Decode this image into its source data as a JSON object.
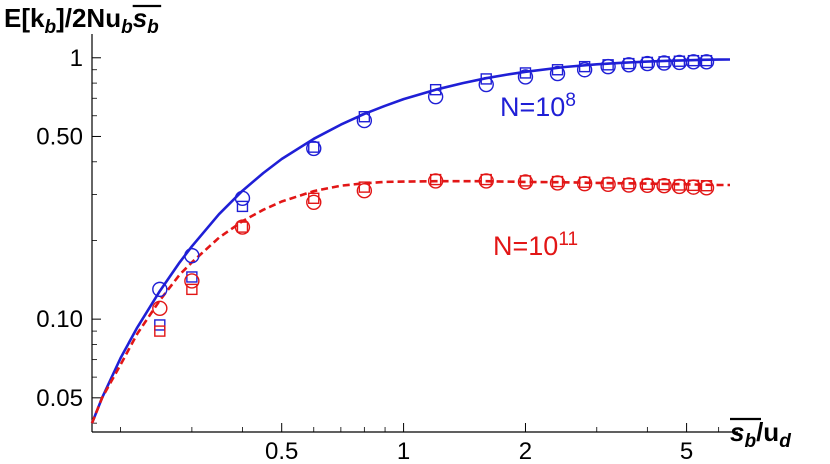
{
  "chart_data": {
    "type": "scatter",
    "title": "",
    "ylabel": {
      "main": "E[k",
      "sub1": "b",
      "mid": "]/2Nu",
      "sub2": "b",
      "over": "s",
      "sub3": "b"
    },
    "xlabel": {
      "over": "s",
      "sub1": "b",
      "mid": "/u",
      "sub2": "d"
    },
    "x_scale": "log",
    "y_scale": "log",
    "xlim": [
      0.17,
      6.4
    ],
    "ylim": [
      0.037,
      1.3
    ],
    "x_ticks": [
      {
        "value": 0.5,
        "label": "0.5"
      },
      {
        "value": 1,
        "label": "1"
      },
      {
        "value": 2,
        "label": "2"
      },
      {
        "value": 5,
        "label": "5"
      }
    ],
    "x_minor_ticks": [
      0.2,
      0.3,
      0.4,
      0.6,
      0.7,
      0.8,
      0.9,
      3,
      4,
      6
    ],
    "y_ticks": [
      {
        "value": 0.05,
        "label": "0.05"
      },
      {
        "value": 0.1,
        "label": "0.10"
      },
      {
        "value": 0.5,
        "label": "0.50"
      },
      {
        "value": 1,
        "label": "1"
      }
    ],
    "y_minor_ticks": [
      0.04,
      0.06,
      0.07,
      0.08,
      0.09,
      0.2,
      0.3,
      0.4,
      0.6,
      0.7,
      0.8,
      0.9
    ],
    "grid": false,
    "series": [
      {
        "annotation": {
          "base": "N=10",
          "exp": "8"
        },
        "color": "#1f1fd6",
        "line_style": "solid",
        "curve": {
          "x": [
            0.17,
            0.18,
            0.2,
            0.22,
            0.25,
            0.28,
            0.3,
            0.35,
            0.4,
            0.45,
            0.5,
            0.6,
            0.7,
            0.8,
            0.9,
            1.0,
            1.2,
            1.4,
            1.6,
            1.8,
            2.0,
            2.5,
            3.0,
            3.5,
            4.0,
            4.5,
            5.0,
            5.5,
            6.0,
            6.4
          ],
          "y": [
            0.04,
            0.05,
            0.071,
            0.093,
            0.128,
            0.165,
            0.19,
            0.252,
            0.31,
            0.362,
            0.41,
            0.49,
            0.555,
            0.61,
            0.655,
            0.695,
            0.755,
            0.8,
            0.835,
            0.862,
            0.884,
            0.922,
            0.944,
            0.958,
            0.967,
            0.974,
            0.978,
            0.982,
            0.984,
            0.985
          ]
        },
        "circles": {
          "x": [
            0.25,
            0.3,
            0.4,
            0.6,
            0.8,
            1.2,
            1.6,
            2.0,
            2.4,
            2.8,
            3.2,
            3.6,
            4.0,
            4.4,
            4.8,
            5.2,
            5.6
          ],
          "y": [
            0.13,
            0.175,
            0.29,
            0.45,
            0.575,
            0.71,
            0.79,
            0.845,
            0.87,
            0.9,
            0.925,
            0.94,
            0.95,
            0.955,
            0.96,
            0.965,
            0.965
          ]
        },
        "squares": {
          "x": [
            0.25,
            0.3,
            0.4,
            0.6,
            0.8,
            1.2,
            1.6,
            2.0,
            2.4,
            2.8,
            3.2,
            3.6,
            4.0,
            4.4,
            4.8,
            5.2,
            5.6
          ],
          "y": [
            0.095,
            0.145,
            0.27,
            0.455,
            0.595,
            0.755,
            0.83,
            0.875,
            0.9,
            0.925,
            0.94,
            0.95,
            0.96,
            0.965,
            0.97,
            0.975,
            0.975
          ]
        }
      },
      {
        "annotation": {
          "base": "N=10",
          "exp": "11"
        },
        "color": "#e21616",
        "line_style": "dashed",
        "curve": {
          "x": [
            0.17,
            0.18,
            0.2,
            0.22,
            0.25,
            0.28,
            0.3,
            0.35,
            0.4,
            0.45,
            0.5,
            0.6,
            0.7,
            0.8,
            0.9,
            1.0,
            1.2,
            1.4,
            1.6,
            1.8,
            2.0,
            2.5,
            3.0,
            3.5,
            4.0,
            4.5,
            5.0,
            5.5,
            6.0,
            6.4
          ],
          "y": [
            0.04,
            0.05,
            0.067,
            0.088,
            0.118,
            0.148,
            0.165,
            0.205,
            0.237,
            0.262,
            0.282,
            0.309,
            0.324,
            0.331,
            0.335,
            0.336,
            0.337,
            0.337,
            0.337,
            0.336,
            0.335,
            0.334,
            0.332,
            0.331,
            0.33,
            0.329,
            0.328,
            0.327,
            0.326,
            0.326
          ]
        },
        "circles": {
          "x": [
            0.25,
            0.3,
            0.4,
            0.6,
            0.8,
            1.2,
            1.6,
            2.0,
            2.4,
            2.8,
            3.2,
            3.6,
            4.0,
            4.4,
            4.8,
            5.2,
            5.6
          ],
          "y": [
            0.11,
            0.14,
            0.225,
            0.28,
            0.31,
            0.338,
            0.338,
            0.335,
            0.332,
            0.33,
            0.328,
            0.326,
            0.325,
            0.324,
            0.322,
            0.32,
            0.318
          ]
        },
        "squares": {
          "x": [
            0.25,
            0.3,
            0.4,
            0.6,
            0.8,
            1.2,
            1.6,
            2.0,
            2.4,
            2.8,
            3.2,
            3.6,
            4.0,
            4.4,
            4.8,
            5.2,
            5.6
          ],
          "y": [
            0.09,
            0.13,
            0.225,
            0.29,
            0.32,
            0.342,
            0.342,
            0.338,
            0.336,
            0.334,
            0.332,
            0.33,
            0.328,
            0.327,
            0.326,
            0.325,
            0.324
          ]
        }
      }
    ]
  }
}
